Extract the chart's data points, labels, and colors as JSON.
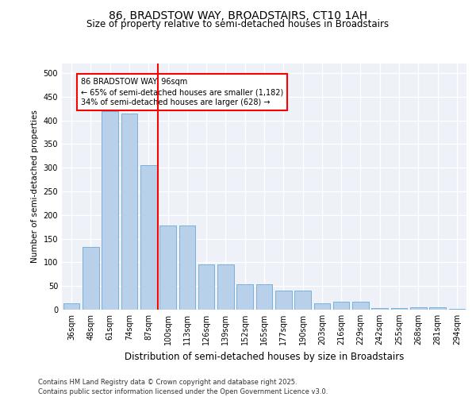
{
  "title1": "86, BRADSTOW WAY, BROADSTAIRS, CT10 1AH",
  "title2": "Size of property relative to semi-detached houses in Broadstairs",
  "xlabel": "Distribution of semi-detached houses by size in Broadstairs",
  "ylabel": "Number of semi-detached properties",
  "categories": [
    "36sqm",
    "48sqm",
    "61sqm",
    "74sqm",
    "87sqm",
    "100sqm",
    "113sqm",
    "126sqm",
    "139sqm",
    "152sqm",
    "165sqm",
    "177sqm",
    "190sqm",
    "203sqm",
    "216sqm",
    "229sqm",
    "242sqm",
    "255sqm",
    "268sqm",
    "281sqm",
    "294sqm"
  ],
  "bar_heights": [
    14,
    133,
    420,
    415,
    305,
    178,
    178,
    95,
    95,
    53,
    53,
    40,
    40,
    14,
    16,
    16,
    4,
    4,
    5,
    5,
    2
  ],
  "bar_color": "#b8d0ea",
  "bar_edge_color": "#6aaad4",
  "vline_index": 5,
  "vline_color": "red",
  "annotation_title": "86 BRADSTOW WAY: 96sqm",
  "annotation_line1": "← 65% of semi-detached houses are smaller (1,182)",
  "annotation_line2": "34% of semi-detached houses are larger (628) →",
  "ylim": [
    0,
    520
  ],
  "yticks": [
    0,
    50,
    100,
    150,
    200,
    250,
    300,
    350,
    400,
    450,
    500
  ],
  "bg_color": "#eef2f8",
  "title1_fontsize": 10,
  "title2_fontsize": 8.5,
  "xlabel_fontsize": 8.5,
  "ylabel_fontsize": 7.5,
  "tick_fontsize": 7,
  "annot_fontsize": 7,
  "footer_fontsize": 6,
  "footer": "Contains HM Land Registry data © Crown copyright and database right 2025.\nContains public sector information licensed under the Open Government Licence v3.0."
}
